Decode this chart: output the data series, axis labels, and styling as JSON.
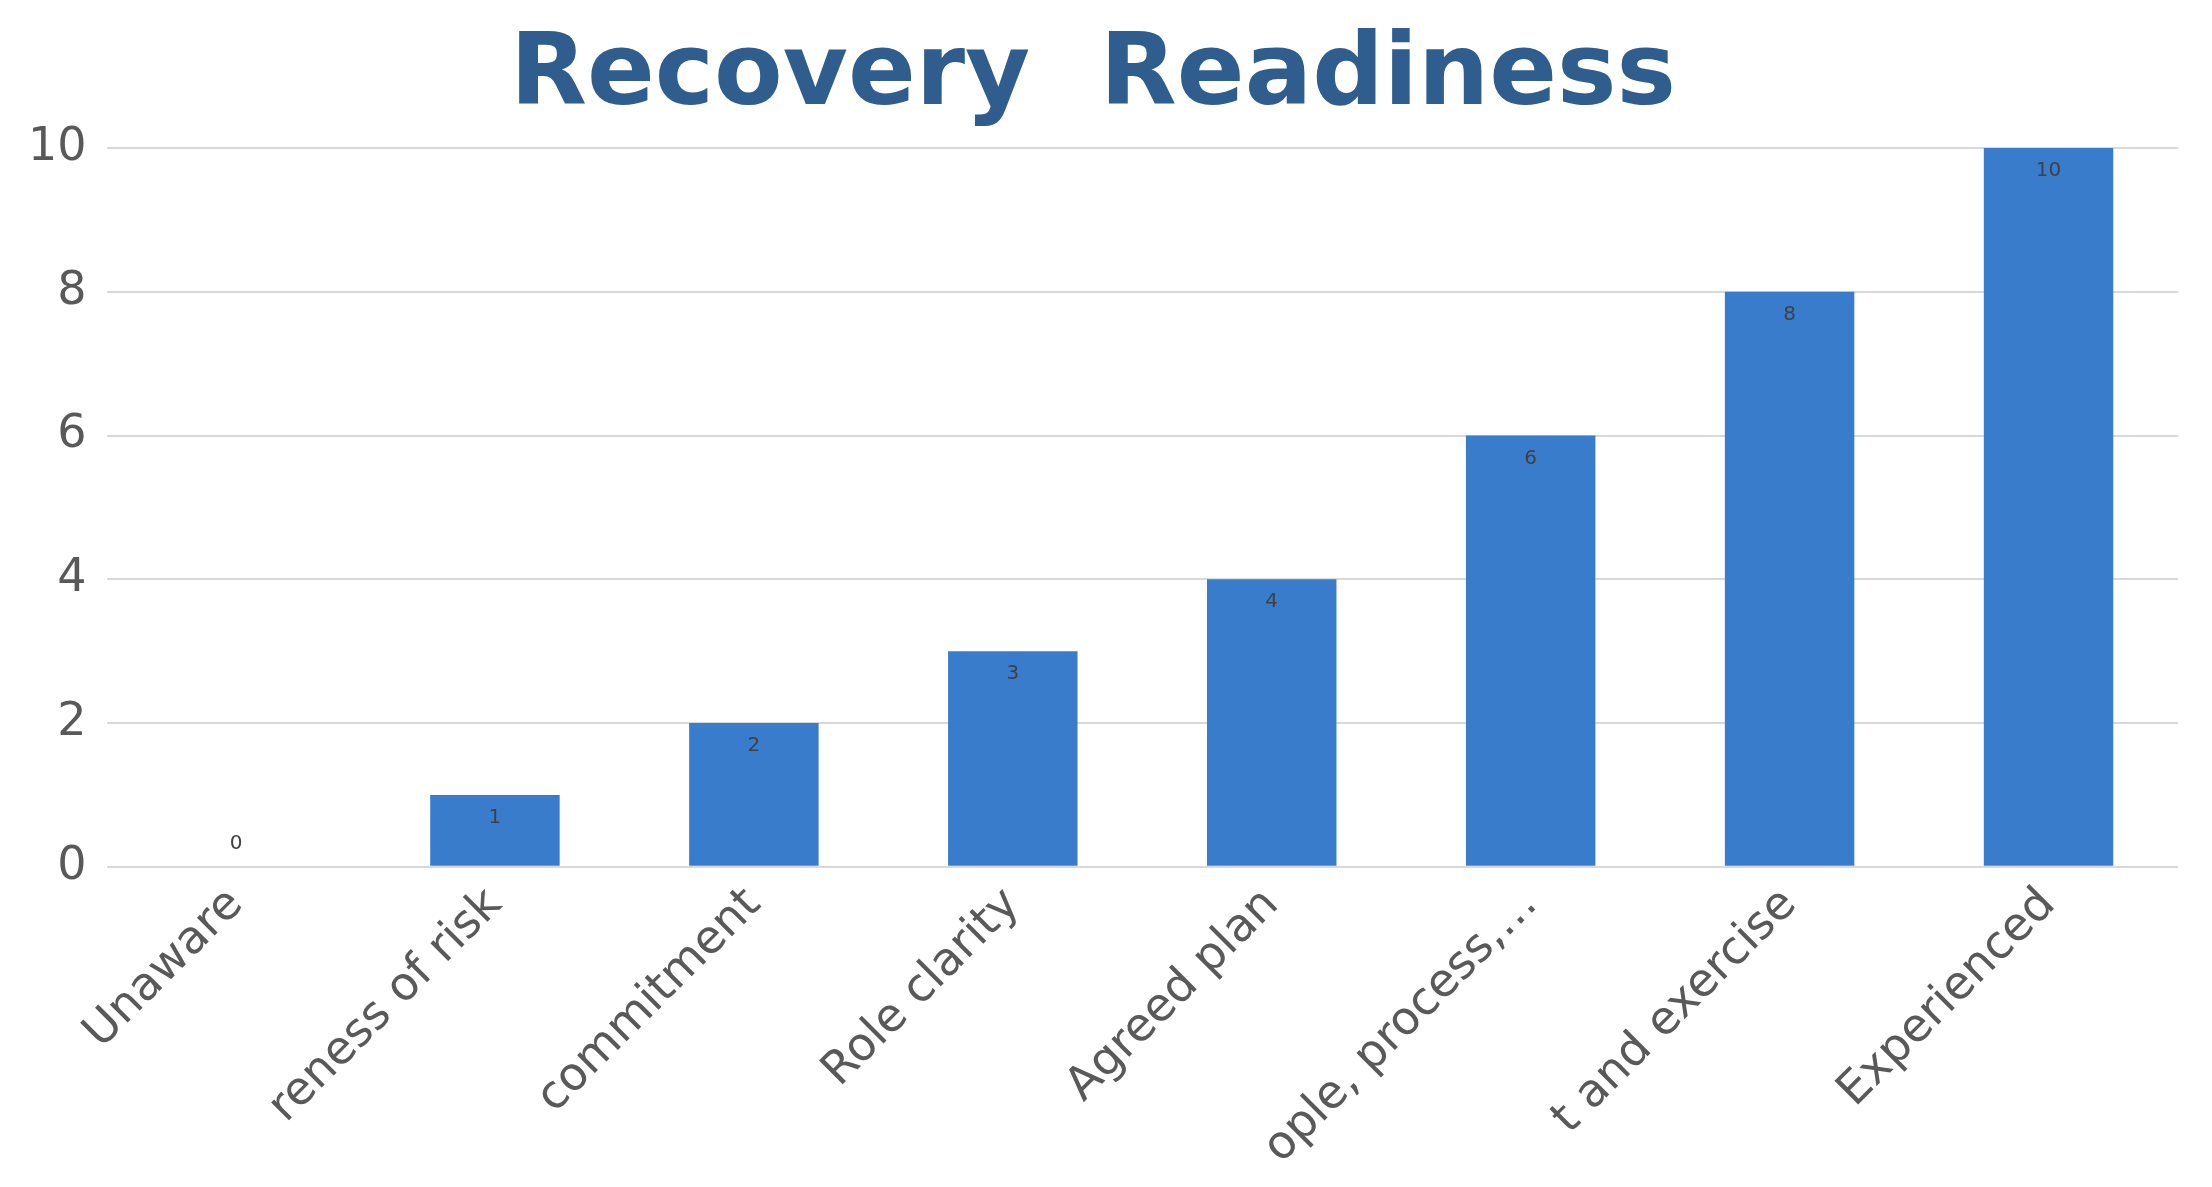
{
  "chart_data": {
    "type": "bar",
    "title": "Recovery  Readiness",
    "categories": [
      "Unaware",
      "reness of risk",
      "commitment",
      "Role clarity",
      "Agreed plan",
      "ople, process,…",
      "t and exercise",
      "Experienced"
    ],
    "values": [
      0,
      1,
      2,
      3,
      4,
      6,
      8,
      10
    ],
    "color": "#3a7ccc",
    "ylim": [
      0,
      10
    ],
    "yticks": [
      0,
      2,
      4,
      6,
      8,
      10
    ],
    "grid": "y",
    "data_labels": true
  }
}
